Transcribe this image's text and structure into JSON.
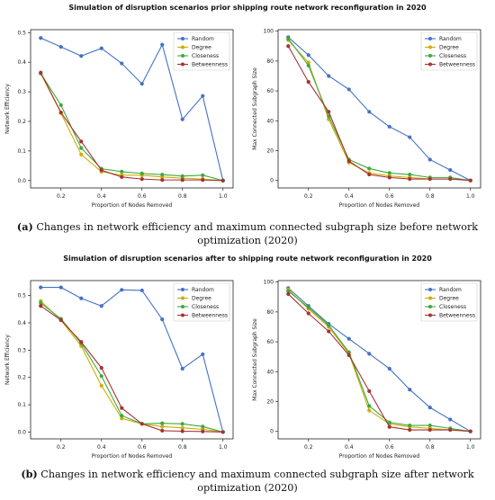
{
  "figure_a": {
    "suptitle": "Simulation of disruption scenarios prior shipping route network reconfiguration in 2020",
    "caption_tag": "(a)",
    "caption_text": " Changes in network efficiency and maximum connected subgraph size before network optimization (2020)"
  },
  "figure_b": {
    "suptitle": "Simulation of disruption scenarios after to shipping route network reconfiguration in 2020",
    "caption_tag": "(b)",
    "caption_text": " Changes in network efficiency and maximum connected subgraph size after network optimization (2020)"
  },
  "series_colors": {
    "Random": "#4472c4",
    "Degree": "#c9b000",
    "Closeness": "#3fa83f",
    "Betweenness": "#a83232"
  },
  "chart_data": [
    {
      "id": "a-efficiency",
      "type": "line",
      "xlabel": "Proportion of Nodes Removed",
      "ylabel": "Network Efficiency",
      "xlim": [
        0.05,
        1.05
      ],
      "ylim": [
        -0.025,
        0.51
      ],
      "xticks": [
        0.2,
        0.4,
        0.6,
        0.8,
        1.0
      ],
      "xtick_labels": [
        "0.2",
        "0.4",
        "0.6",
        "0.8",
        "1.0"
      ],
      "yticks": [
        0.0,
        0.1,
        0.2,
        0.3,
        0.4,
        0.5
      ],
      "ytick_labels": [
        "0.0",
        "0.1",
        "0.2",
        "0.3",
        "0.4",
        "0.5"
      ],
      "legend": "top-right",
      "x": [
        0.1,
        0.2,
        0.3,
        0.4,
        0.5,
        0.6,
        0.7,
        0.8,
        0.9,
        1.0
      ],
      "series": [
        {
          "name": "Random",
          "values": [
            0.482,
            0.452,
            0.421,
            0.447,
            0.396,
            0.327,
            0.459,
            0.207,
            0.286,
            0.0
          ]
        },
        {
          "name": "Degree",
          "values": [
            0.362,
            0.228,
            0.088,
            0.03,
            0.018,
            0.018,
            0.012,
            0.008,
            0.005,
            0.0
          ]
        },
        {
          "name": "Closeness",
          "values": [
            0.362,
            0.255,
            0.11,
            0.04,
            0.03,
            0.024,
            0.02,
            0.015,
            0.018,
            0.0
          ]
        },
        {
          "name": "Betweenness",
          "values": [
            0.365,
            0.23,
            0.132,
            0.035,
            0.012,
            0.005,
            0.002,
            0.002,
            0.002,
            0.0
          ]
        }
      ]
    },
    {
      "id": "a-subgraph",
      "type": "line",
      "xlabel": "Proportion of Nodes Removed",
      "ylabel": "Max Connected Subgraph Size",
      "xlim": [
        0.05,
        1.05
      ],
      "ylim": [
        -5,
        101
      ],
      "xticks": [
        0.2,
        0.4,
        0.6,
        0.8,
        1.0
      ],
      "xtick_labels": [
        "0.2",
        "0.4",
        "0.6",
        "0.8",
        "1.0"
      ],
      "yticks": [
        0,
        20,
        40,
        60,
        80,
        100
      ],
      "ytick_labels": [
        "0",
        "20",
        "40",
        "60",
        "80",
        "100"
      ],
      "legend": "top-right",
      "x": [
        0.1,
        0.2,
        0.3,
        0.4,
        0.5,
        0.6,
        0.7,
        0.8,
        0.9,
        1.0
      ],
      "series": [
        {
          "name": "Random",
          "values": [
            96,
            84,
            70,
            61,
            46,
            36,
            29,
            14,
            7,
            0
          ]
        },
        {
          "name": "Degree",
          "values": [
            94,
            79,
            41,
            12,
            5,
            3,
            2,
            1,
            1,
            0
          ]
        },
        {
          "name": "Closeness",
          "values": [
            95,
            77,
            43,
            14,
            8,
            5,
            4,
            2,
            2,
            0
          ]
        },
        {
          "name": "Betweenness",
          "values": [
            90,
            66,
            46,
            13,
            4,
            2,
            1,
            1,
            1,
            0
          ]
        }
      ]
    },
    {
      "id": "b-efficiency",
      "type": "line",
      "xlabel": "Proportion of Nodes Removed",
      "ylabel": "Network Efficiency",
      "xlim": [
        0.05,
        1.05
      ],
      "ylim": [
        -0.025,
        0.555
      ],
      "xticks": [
        0.2,
        0.4,
        0.6,
        0.8,
        1.0
      ],
      "xtick_labels": [
        "0.2",
        "0.4",
        "0.6",
        "0.8",
        "1.0"
      ],
      "yticks": [
        0.0,
        0.1,
        0.2,
        0.3,
        0.4,
        0.5
      ],
      "ytick_labels": [
        "0.0",
        "0.1",
        "0.2",
        "0.3",
        "0.4",
        "0.5"
      ],
      "legend": "top-right",
      "x": [
        0.1,
        0.2,
        0.3,
        0.4,
        0.5,
        0.6,
        0.7,
        0.8,
        0.9,
        1.0
      ],
      "series": [
        {
          "name": "Random",
          "values": [
            0.53,
            0.53,
            0.49,
            0.462,
            0.521,
            0.519,
            0.413,
            0.232,
            0.285,
            0.0
          ]
        },
        {
          "name": "Degree",
          "values": [
            0.48,
            0.41,
            0.315,
            0.17,
            0.05,
            0.03,
            0.02,
            0.015,
            0.01,
            0.0
          ]
        },
        {
          "name": "Closeness",
          "values": [
            0.473,
            0.415,
            0.325,
            0.205,
            0.06,
            0.03,
            0.032,
            0.03,
            0.02,
            0.0
          ]
        },
        {
          "name": "Betweenness",
          "values": [
            0.462,
            0.41,
            0.33,
            0.235,
            0.088,
            0.03,
            0.005,
            0.003,
            0.002,
            0.0
          ]
        }
      ]
    },
    {
      "id": "b-subgraph",
      "type": "line",
      "xlabel": "Proportion of Nodes Removed",
      "ylabel": "Max Connected Subgraph Size",
      "xlim": [
        0.05,
        1.05
      ],
      "ylim": [
        -5,
        101
      ],
      "xticks": [
        0.2,
        0.4,
        0.6,
        0.8,
        1.0
      ],
      "xtick_labels": [
        "0.2",
        "0.4",
        "0.6",
        "0.8",
        "1.0"
      ],
      "yticks": [
        0,
        20,
        40,
        60,
        80,
        100
      ],
      "ytick_labels": [
        "0",
        "20",
        "40",
        "60",
        "80",
        "100"
      ],
      "legend": "top-right",
      "x": [
        0.1,
        0.2,
        0.3,
        0.4,
        0.5,
        0.6,
        0.7,
        0.8,
        0.9,
        1.0
      ],
      "series": [
        {
          "name": "Random",
          "values": [
            96,
            84,
            72,
            62,
            52,
            42,
            28,
            16,
            8,
            0
          ]
        },
        {
          "name": "Degree",
          "values": [
            95,
            82,
            70,
            52,
            14,
            5,
            3,
            2,
            1,
            0
          ]
        },
        {
          "name": "Closeness",
          "values": [
            94,
            83,
            71,
            53,
            17,
            6,
            4,
            4,
            2,
            0
          ]
        },
        {
          "name": "Betweenness",
          "values": [
            92,
            79,
            67,
            51,
            27,
            3,
            1,
            1,
            1,
            0
          ]
        }
      ]
    }
  ]
}
